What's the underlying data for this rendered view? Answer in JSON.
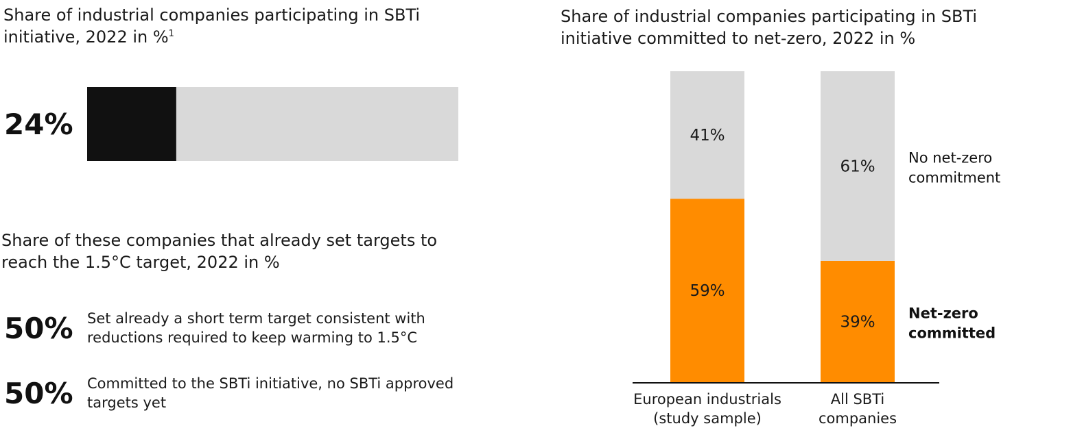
{
  "left_panel": {
    "title": "Share of industrial companies participating in SBTi initiative, 2022 in %",
    "title_footnote": "1",
    "headline_value": "24%",
    "subtitle": "Share of these companies that already set targets to reach the 1.5°C target, 2022 in %",
    "stats": [
      {
        "value": "50%",
        "description": "Set already a short term target consistent with reductions required to keep warming to 1.5°C"
      },
      {
        "value": "50%",
        "description": "Committed to the SBTi initiative, no SBTi approved targets yet"
      }
    ]
  },
  "right_panel": {
    "title": "Share of industrial companies participating in SBTi initiative committed to net-zero, 2022 in %"
  },
  "chart_data": [
    {
      "type": "bar",
      "orientation": "horizontal",
      "title": "Share of industrial companies participating in SBTi initiative, 2022 in %",
      "values": [
        24
      ],
      "xlim": [
        0,
        100
      ],
      "colors": {
        "filled": "#111111",
        "remainder": "#d9d9d9"
      }
    },
    {
      "type": "bar",
      "stacked": true,
      "title": "Share of industrial companies participating in SBTi initiative committed to net-zero, 2022 in %",
      "categories": [
        "European industrials (study sample)",
        "All SBTi companies"
      ],
      "category_lines": [
        [
          "European industrials",
          "(study sample)"
        ],
        [
          "All SBTi",
          "companies"
        ]
      ],
      "series": [
        {
          "name": "Net-zero committed",
          "label_lines": [
            "Net-zero",
            "committed"
          ],
          "values": [
            59,
            39
          ],
          "color": "#ff8c00",
          "bold": true
        },
        {
          "name": "No net-zero commitment",
          "label_lines": [
            "No net-zero",
            "commitment"
          ],
          "values": [
            41,
            61
          ],
          "color": "#d9d9d9",
          "bold": false
        }
      ],
      "value_suffix": "%",
      "ylim": [
        0,
        100
      ],
      "legend_placement": "right"
    }
  ]
}
